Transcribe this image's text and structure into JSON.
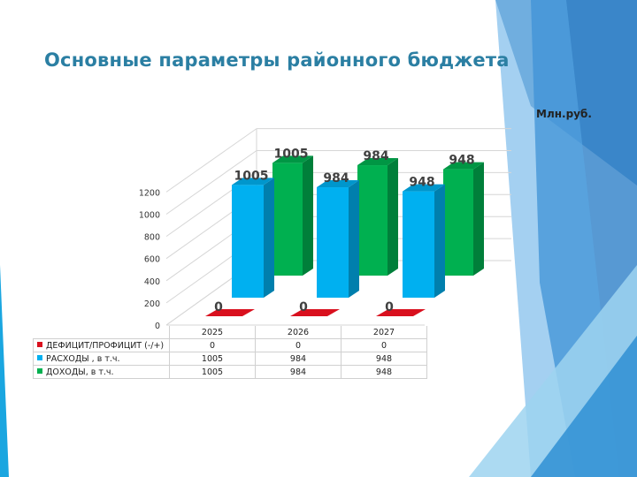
{
  "slide": {
    "title": "Основные параметры районного бюджета",
    "unit": "Млн.руб."
  },
  "colors": {
    "deficit": "#d9101e",
    "expenses": "#00b0f0",
    "income": "#00b050",
    "title": "#2b7fa3",
    "decor_dark": "#2e75b6",
    "decor_light": "#9dd3f0"
  },
  "chart_data": {
    "type": "bar",
    "categories": [
      "2025",
      "2026",
      "2027"
    ],
    "series": [
      {
        "name": "ДЕФИЦИТ/ПРОФИЦИТ (-/+)",
        "values": [
          0,
          0,
          0
        ],
        "data_labels": [
          "0",
          "0",
          "0"
        ]
      },
      {
        "name": "РАСХОДЫ , в т.ч.",
        "values": [
          1005,
          984,
          948
        ],
        "data_labels": [
          "1005",
          "984",
          "948"
        ]
      },
      {
        "name": "ДОХОДЫ, в т.ч.",
        "values": [
          1005,
          984,
          948
        ],
        "data_labels": [
          "1005",
          "984",
          "948"
        ]
      }
    ],
    "yticks": [
      "0",
      "200",
      "400",
      "600",
      "800",
      "1000",
      "1200"
    ],
    "ylim": [
      0,
      1200
    ],
    "grid": true,
    "legend": "data-table-below"
  },
  "table": {
    "rows": [
      {
        "label": "ДЕФИЦИТ/ПРОФИЦИТ  (-/+)",
        "values": [
          "0",
          "0",
          "0"
        ]
      },
      {
        "label": "РАСХОДЫ , в т.ч.",
        "values": [
          "1005",
          "984",
          "948"
        ]
      },
      {
        "label": "ДОХОДЫ, в т.ч.",
        "values": [
          "1005",
          "984",
          "948"
        ]
      }
    ]
  }
}
